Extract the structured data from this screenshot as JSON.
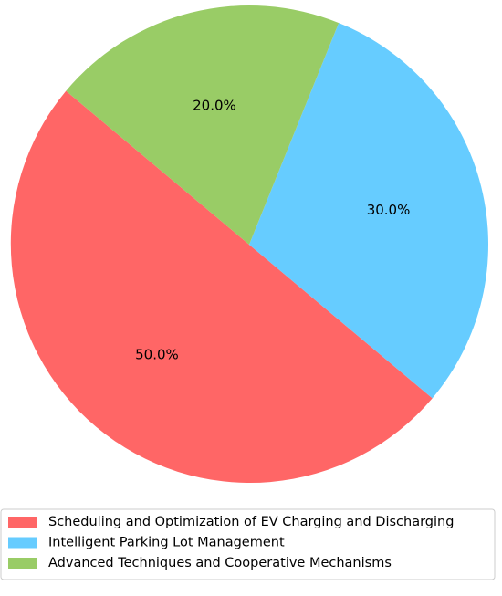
{
  "chart_data": {
    "type": "pie",
    "title": "",
    "categories": [
      "Scheduling and Optimization of EV Charging and Discharging",
      "Intelligent Parking Lot Management",
      "Advanced Techniques and Cooperative Mechanisms"
    ],
    "values": [
      50.0,
      30.0,
      20.0
    ],
    "percent_labels": [
      "50.0%",
      "30.0%",
      "20.0%"
    ],
    "colors": [
      "#ff6666",
      "#66ccff",
      "#99cc66"
    ],
    "start_angle_deg": 140,
    "direction": "counterclockwise",
    "legend": {
      "placement": "bottom",
      "entries": [
        "Scheduling and Optimization of EV Charging and Discharging",
        "Intelligent Parking Lot Management",
        "Advanced Techniques and Cooperative Mechanisms"
      ]
    }
  }
}
